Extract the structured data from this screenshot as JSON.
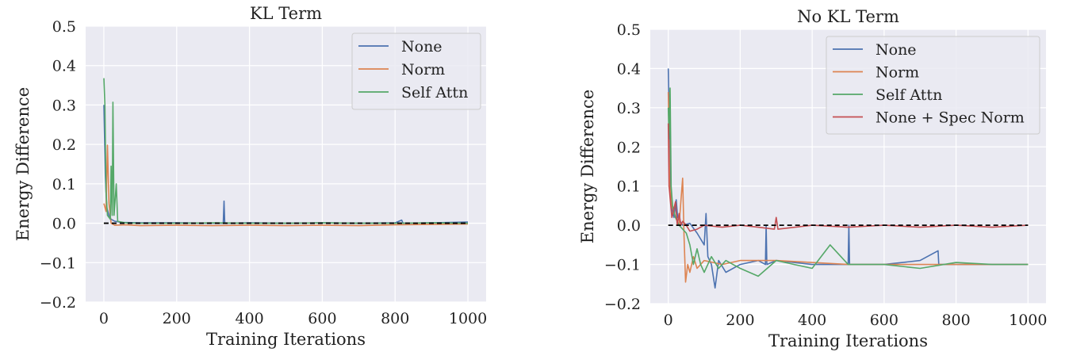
{
  "chart_data": [
    {
      "type": "line",
      "title": "KL Term",
      "xlabel": "Training Iterations",
      "ylabel": "Energy Difference",
      "xlim": [
        -50,
        1050
      ],
      "ylim": [
        -0.2,
        0.5
      ],
      "xticks": [
        0,
        200,
        400,
        600,
        800,
        1000
      ],
      "yticks": [
        -0.2,
        -0.1,
        0.0,
        0.1,
        0.2,
        0.3,
        0.4,
        0.5
      ],
      "ytick_labels": [
        "−0.2",
        "−0.1",
        "0.0",
        "0.1",
        "0.2",
        "0.3",
        "0.4",
        "0.5"
      ],
      "grid": true,
      "legend_position": "top-right",
      "reference_line": {
        "y": 0.0,
        "style": "dashed",
        "color": "#000000"
      },
      "series": [
        {
          "name": "None",
          "color": "#4c72b0",
          "points": [
            [
              0,
              0.3
            ],
            [
              4,
              0.12
            ],
            [
              8,
              0.04
            ],
            [
              14,
              0.02
            ],
            [
              20,
              0.01
            ],
            [
              30,
              0.005
            ],
            [
              50,
              0.002
            ],
            [
              100,
              0.001
            ],
            [
              200,
              0.001
            ],
            [
              300,
              0.0
            ],
            [
              328,
              0.0
            ],
            [
              330,
              0.056
            ],
            [
              332,
              0.0
            ],
            [
              400,
              0.001
            ],
            [
              500,
              0.0
            ],
            [
              600,
              0.001
            ],
            [
              700,
              0.0
            ],
            [
              800,
              0.001
            ],
            [
              818,
              0.008
            ],
            [
              822,
              0.0
            ],
            [
              900,
              0.001
            ],
            [
              1000,
              0.003
            ]
          ]
        },
        {
          "name": "Norm",
          "color": "#dd8452",
          "points": [
            [
              0,
              0.05
            ],
            [
              6,
              0.03
            ],
            [
              10,
              0.198
            ],
            [
              14,
              0.05
            ],
            [
              20,
              0.0
            ],
            [
              30,
              -0.005
            ],
            [
              60,
              -0.004
            ],
            [
              100,
              -0.006
            ],
            [
              200,
              -0.005
            ],
            [
              300,
              -0.006
            ],
            [
              400,
              -0.005
            ],
            [
              500,
              -0.006
            ],
            [
              600,
              -0.005
            ],
            [
              700,
              -0.006
            ],
            [
              800,
              -0.004
            ],
            [
              900,
              -0.003
            ],
            [
              1000,
              -0.002
            ]
          ]
        },
        {
          "name": "Self Attn",
          "color": "#55a868",
          "points": [
            [
              0,
              0.368
            ],
            [
              3,
              0.3
            ],
            [
              6,
              0.08
            ],
            [
              10,
              0.02
            ],
            [
              18,
              0.01
            ],
            [
              20,
              0.145
            ],
            [
              23,
              0.02
            ],
            [
              25,
              0.307
            ],
            [
              28,
              0.02
            ],
            [
              34,
              0.1
            ],
            [
              38,
              0.005
            ],
            [
              60,
              0.001
            ],
            [
              100,
              0.0
            ],
            [
              200,
              0.0
            ],
            [
              300,
              0.001
            ],
            [
              400,
              0.0
            ],
            [
              500,
              0.0
            ],
            [
              600,
              0.001
            ],
            [
              700,
              0.0
            ],
            [
              800,
              0.0
            ],
            [
              900,
              0.001
            ],
            [
              1000,
              0.0
            ]
          ]
        }
      ]
    },
    {
      "type": "line",
      "title": "No KL Term",
      "xlabel": "Training Iterations",
      "ylabel": "Energy Difference",
      "xlim": [
        -50,
        1050
      ],
      "ylim": [
        -0.2,
        0.5
      ],
      "xticks": [
        0,
        200,
        400,
        600,
        800,
        1000
      ],
      "yticks": [
        -0.2,
        -0.1,
        0.0,
        0.1,
        0.2,
        0.3,
        0.4,
        0.5
      ],
      "ytick_labels": [
        "−0.2",
        "−0.1",
        "0.0",
        "0.1",
        "0.2",
        "0.3",
        "0.4",
        "0.5"
      ],
      "grid": true,
      "legend_position": "top-right",
      "reference_line": {
        "y": 0.0,
        "style": "dashed",
        "color": "#000000"
      },
      "series": [
        {
          "name": "None",
          "color": "#4c72b0",
          "points": [
            [
              0,
              0.4
            ],
            [
              4,
              0.2
            ],
            [
              8,
              0.05
            ],
            [
              16,
              0.02
            ],
            [
              22,
              0.065
            ],
            [
              26,
              0.02
            ],
            [
              40,
              0.0
            ],
            [
              60,
              0.005
            ],
            [
              80,
              -0.02
            ],
            [
              100,
              -0.05
            ],
            [
              105,
              0.03
            ],
            [
              110,
              -0.08
            ],
            [
              120,
              -0.1
            ],
            [
              130,
              -0.16
            ],
            [
              140,
              -0.09
            ],
            [
              160,
              -0.12
            ],
            [
              200,
              -0.1
            ],
            [
              250,
              -0.09
            ],
            [
              270,
              -0.1
            ],
            [
              272,
              0.0
            ],
            [
              274,
              -0.1
            ],
            [
              300,
              -0.09
            ],
            [
              400,
              -0.1
            ],
            [
              500,
              -0.1
            ],
            [
              502,
              0.0
            ],
            [
              504,
              -0.1
            ],
            [
              600,
              -0.1
            ],
            [
              700,
              -0.09
            ],
            [
              750,
              -0.065
            ],
            [
              752,
              -0.1
            ],
            [
              800,
              -0.1
            ],
            [
              900,
              -0.1
            ],
            [
              1000,
              -0.1
            ]
          ]
        },
        {
          "name": "Norm",
          "color": "#dd8452",
          "points": [
            [
              0,
              0.34
            ],
            [
              4,
              0.1
            ],
            [
              10,
              0.05
            ],
            [
              20,
              0.02
            ],
            [
              30,
              0.0
            ],
            [
              40,
              0.12
            ],
            [
              44,
              -0.03
            ],
            [
              48,
              -0.145
            ],
            [
              54,
              -0.1
            ],
            [
              60,
              -0.12
            ],
            [
              70,
              -0.08
            ],
            [
              80,
              -0.11
            ],
            [
              100,
              -0.09
            ],
            [
              150,
              -0.1
            ],
            [
              200,
              -0.09
            ],
            [
              300,
              -0.09
            ],
            [
              400,
              -0.095
            ],
            [
              500,
              -0.1
            ],
            [
              600,
              -0.1
            ],
            [
              700,
              -0.1
            ],
            [
              800,
              -0.1
            ],
            [
              900,
              -0.1
            ],
            [
              1000,
              -0.1
            ]
          ]
        },
        {
          "name": "Self Attn",
          "color": "#55a868",
          "points": [
            [
              0,
              0.3
            ],
            [
              2,
              0.22
            ],
            [
              5,
              0.35
            ],
            [
              8,
              0.1
            ],
            [
              12,
              0.05
            ],
            [
              20,
              0.02
            ],
            [
              30,
              0.0
            ],
            [
              50,
              -0.02
            ],
            [
              60,
              -0.05
            ],
            [
              70,
              -0.1
            ],
            [
              80,
              -0.06
            ],
            [
              90,
              -0.1
            ],
            [
              100,
              -0.12
            ],
            [
              120,
              -0.08
            ],
            [
              140,
              -0.11
            ],
            [
              160,
              -0.09
            ],
            [
              180,
              -0.1
            ],
            [
              200,
              -0.11
            ],
            [
              250,
              -0.13
            ],
            [
              300,
              -0.09
            ],
            [
              350,
              -0.1
            ],
            [
              400,
              -0.11
            ],
            [
              450,
              -0.05
            ],
            [
              500,
              -0.1
            ],
            [
              600,
              -0.1
            ],
            [
              700,
              -0.11
            ],
            [
              800,
              -0.095
            ],
            [
              900,
              -0.1
            ],
            [
              1000,
              -0.1
            ]
          ]
        },
        {
          "name": "None + Spec Norm",
          "color": "#c44e52",
          "points": [
            [
              0,
              0.26
            ],
            [
              2,
              0.1
            ],
            [
              5,
              0.07
            ],
            [
              10,
              0.02
            ],
            [
              20,
              0.06
            ],
            [
              25,
              0.0
            ],
            [
              30,
              0.03
            ],
            [
              35,
              0.0
            ],
            [
              40,
              0.01
            ],
            [
              50,
              0.0
            ],
            [
              60,
              -0.015
            ],
            [
              80,
              -0.01
            ],
            [
              100,
              0.0
            ],
            [
              150,
              -0.005
            ],
            [
              200,
              0.0
            ],
            [
              250,
              -0.005
            ],
            [
              295,
              -0.01
            ],
            [
              300,
              0.02
            ],
            [
              305,
              -0.01
            ],
            [
              400,
              0.0
            ],
            [
              500,
              -0.005
            ],
            [
              600,
              0.0
            ],
            [
              700,
              -0.005
            ],
            [
              800,
              0.0
            ],
            [
              900,
              -0.005
            ],
            [
              1000,
              0.0
            ]
          ]
        }
      ]
    }
  ]
}
